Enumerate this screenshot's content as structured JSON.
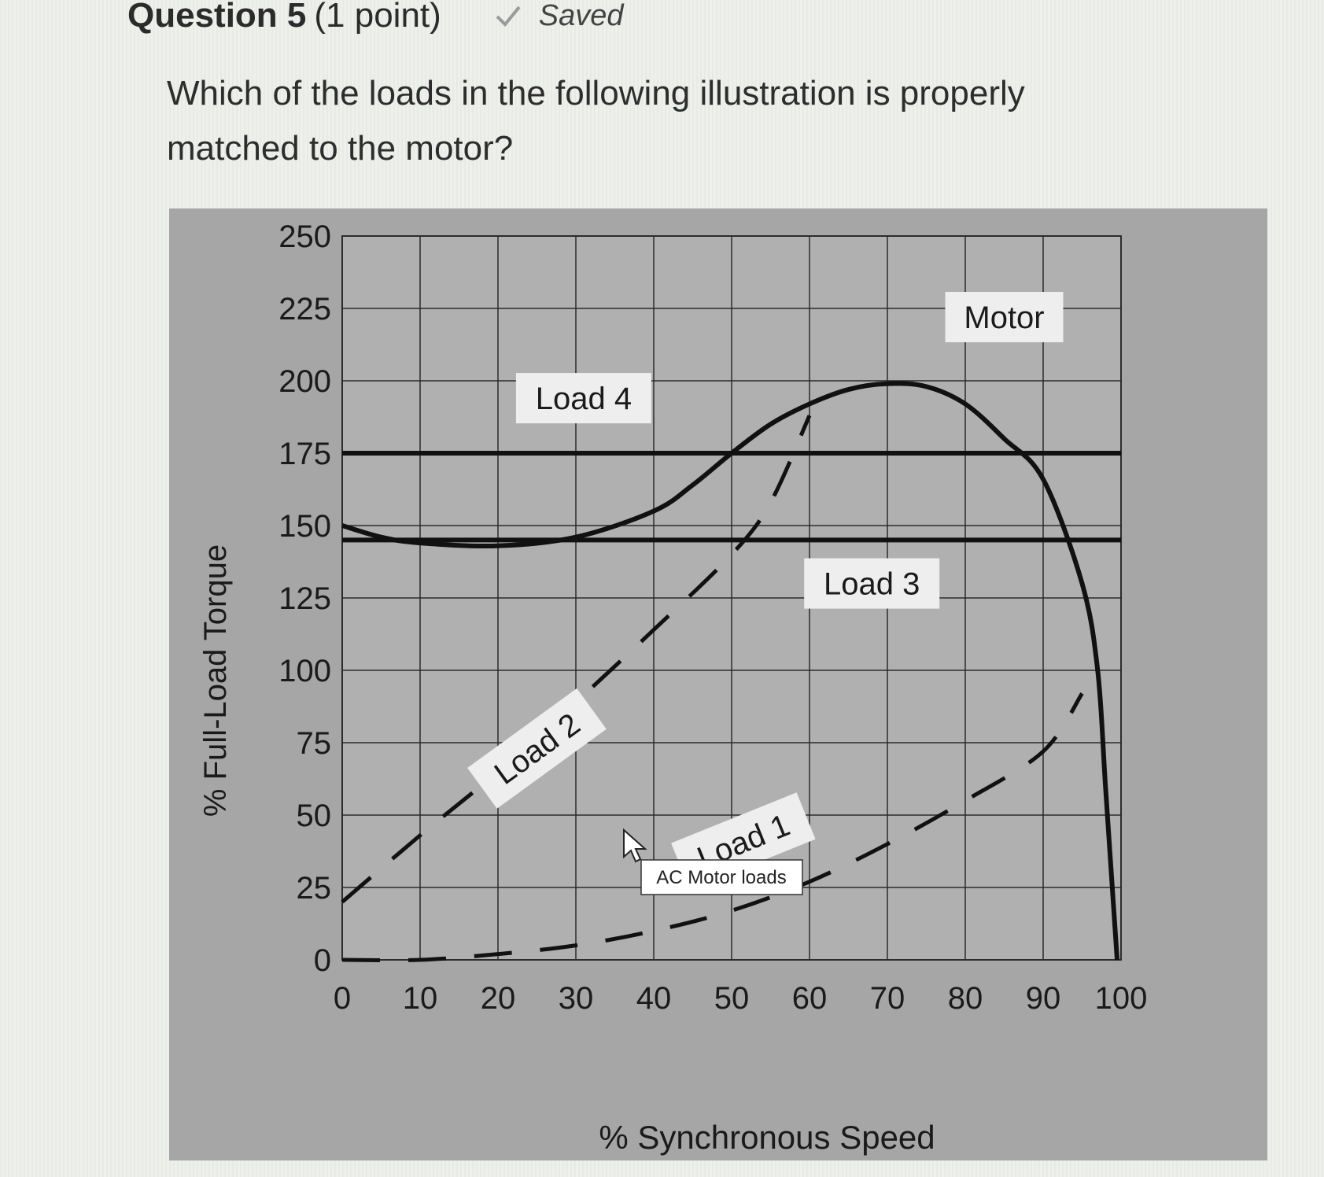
{
  "question": {
    "title": "Question 5",
    "points": "(1 point)",
    "status": "Saved",
    "status_icon": "check-icon",
    "prompt": "Which of the loads in the following illustration is properly matched to the motor?"
  },
  "figure": {
    "caption_popup": "AC Motor loads",
    "cursor_icon": "arrow-cursor-icon"
  },
  "chart_data": {
    "type": "line",
    "title": "",
    "xlabel": "% Synchronous Speed",
    "ylabel": "% Full-Load Torque",
    "xlim": [
      0,
      100
    ],
    "ylim": [
      0,
      250
    ],
    "x_ticks": [
      "0",
      "10",
      "20",
      "30",
      "40",
      "50",
      "60",
      "70",
      "80",
      "90",
      "100"
    ],
    "y_ticks": [
      "0",
      "25",
      "50",
      "75",
      "100",
      "125",
      "150",
      "175",
      "200",
      "225",
      "250"
    ],
    "grid": true,
    "series": [
      {
        "name": "Motor",
        "style": "solid",
        "points": [
          [
            0,
            150
          ],
          [
            5,
            146
          ],
          [
            10,
            144
          ],
          [
            20,
            143
          ],
          [
            30,
            146
          ],
          [
            40,
            155
          ],
          [
            45,
            164
          ],
          [
            50,
            175
          ],
          [
            55,
            185
          ],
          [
            60,
            192
          ],
          [
            65,
            197
          ],
          [
            70,
            199
          ],
          [
            75,
            198
          ],
          [
            80,
            192
          ],
          [
            85,
            180
          ],
          [
            90,
            166
          ],
          [
            95,
            130
          ],
          [
            97,
            100
          ],
          [
            98,
            60
          ],
          [
            99,
            20
          ],
          [
            99.5,
            0
          ]
        ]
      },
      {
        "name": "Load 4",
        "style": "solid",
        "points": [
          [
            0,
            175
          ],
          [
            100,
            175
          ]
        ]
      },
      {
        "name": "Load 3",
        "style": "solid",
        "points": [
          [
            0,
            145
          ],
          [
            100,
            145
          ]
        ]
      },
      {
        "name": "Load 2",
        "style": "dashed",
        "points": [
          [
            0,
            20
          ],
          [
            10,
            43
          ],
          [
            20,
            65
          ],
          [
            30,
            89
          ],
          [
            40,
            114
          ],
          [
            50,
            140
          ],
          [
            55,
            158
          ],
          [
            60,
            188
          ]
        ]
      },
      {
        "name": "Load 1",
        "style": "dashed",
        "points": [
          [
            0,
            0
          ],
          [
            10,
            0
          ],
          [
            20,
            2
          ],
          [
            30,
            5
          ],
          [
            40,
            10
          ],
          [
            50,
            17
          ],
          [
            60,
            27
          ],
          [
            70,
            40
          ],
          [
            80,
            55
          ],
          [
            90,
            72
          ],
          [
            95,
            92
          ]
        ]
      }
    ]
  }
}
